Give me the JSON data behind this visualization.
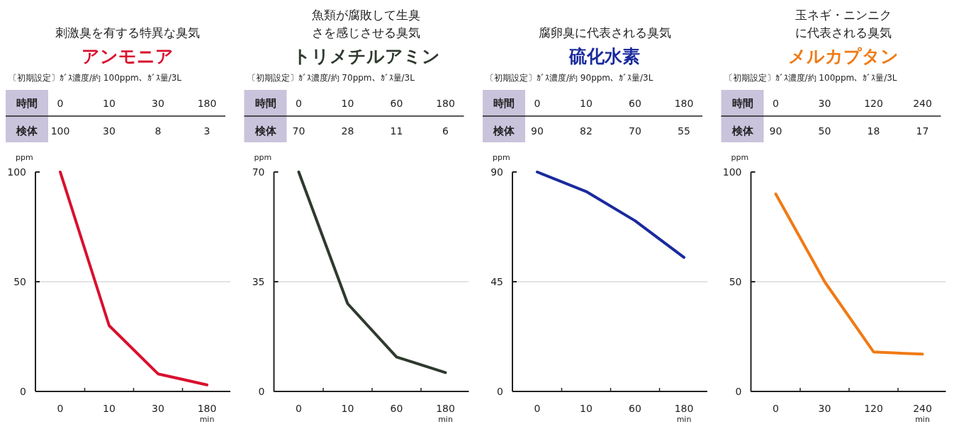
{
  "chart_data": [
    {
      "type": "line",
      "title": "刺激臭を有する特異な臭気",
      "subtitle": "アンモニア",
      "annotations": [
        "〔初期設定〕ｶﾞｽ濃度/約 100ppm、ｶﾞｽ量/3L",
        "時間",
        "検体"
      ],
      "xlabel": "min",
      "ylabel": "ppm",
      "categories": [
        "0",
        "10",
        "30",
        "180"
      ],
      "series": [
        {
          "color": "#d9102e",
          "values": [
            100,
            30,
            8,
            3
          ]
        }
      ],
      "ylim": [
        0,
        100
      ],
      "yticks": [
        0,
        50,
        100
      ],
      "grid": "y",
      "data_labels": true
    },
    {
      "type": "line",
      "title": "魚類が腐敗して生臭さを感じさせる臭気",
      "subtitle": "トリメチルアミン",
      "annotations": [
        "〔初期設定〕ｶﾞｽ濃度/約 70ppm、ｶﾞｽ量/3L",
        "時間",
        "検体"
      ],
      "xlabel": "min",
      "ylabel": "ppm",
      "categories": [
        "0",
        "10",
        "60",
        "180"
      ],
      "series": [
        {
          "color": "#2f3a2f",
          "values": [
            70,
            28,
            11,
            6
          ]
        }
      ],
      "ylim": [
        0,
        70
      ],
      "yticks": [
        0,
        35,
        70
      ],
      "grid": "y",
      "data_labels": true
    },
    {
      "type": "line",
      "title": "腐卵臭に代表される臭気",
      "subtitle": "硫化水素",
      "annotations": [
        "〔初期設定〕ｶﾞｽ濃度/約 90ppm、ｶﾞｽ量/3L",
        "時間",
        "検体"
      ],
      "xlabel": "min",
      "ylabel": "ppm",
      "categories": [
        "0",
        "10",
        "60",
        "180"
      ],
      "series": [
        {
          "color": "#1a2a9c",
          "values": [
            90,
            82,
            70,
            55
          ]
        }
      ],
      "ylim": [
        0,
        90
      ],
      "yticks": [
        0,
        45,
        90
      ],
      "grid": "y",
      "data_labels": true
    },
    {
      "type": "line",
      "title": "玉ネギ・ニンニクに代表される臭気",
      "subtitle": "メルカプタン",
      "annotations": [
        "〔初期設定〕ｶﾞｽ濃度/約 100ppm、ｶﾞｽ量/3L",
        "時間",
        "検体"
      ],
      "xlabel": "min",
      "ylabel": "ppm",
      "categories": [
        "0",
        "30",
        "120",
        "240"
      ],
      "series": [
        {
          "color": "#f07a14",
          "values": [
            90,
            50,
            18,
            17
          ]
        }
      ],
      "ylim": [
        0,
        100
      ],
      "yticks": [
        0,
        50,
        100
      ],
      "grid": "y",
      "data_labels": true
    }
  ]
}
